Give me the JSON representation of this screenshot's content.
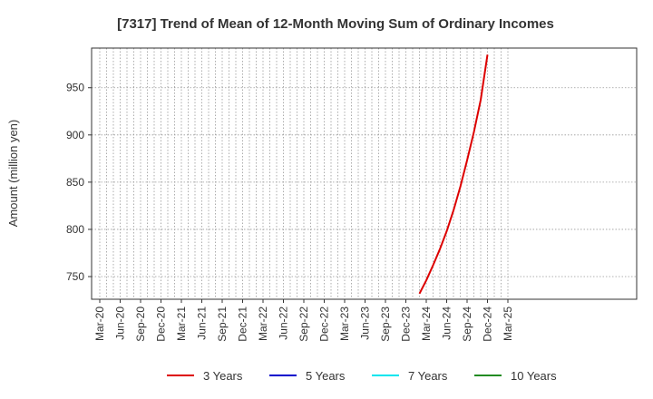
{
  "chart_data": {
    "type": "line",
    "title": "[7317]  Trend of Mean of 12-Month Moving Sum of Ordinary Incomes",
    "ylabel": "Amount (million yen)",
    "xlabel": "",
    "ylim": [
      726,
      992
    ],
    "yticks": [
      750,
      800,
      850,
      900,
      950
    ],
    "grid": true,
    "legend_position": "bottom",
    "x_tick_labels": [
      "Mar-20",
      "Jun-20",
      "Sep-20",
      "Dec-20",
      "Mar-21",
      "Jun-21",
      "Sep-21",
      "Dec-21",
      "Mar-22",
      "Jun-22",
      "Sep-22",
      "Dec-22",
      "Mar-23",
      "Jun-23",
      "Sep-23",
      "Dec-23",
      "Mar-24",
      "Jun-24",
      "Sep-24",
      "Dec-24",
      "Mar-25"
    ],
    "series": [
      {
        "name": "3 Years",
        "color": "#dd0000",
        "x": [
          "Feb-24",
          "Mar-24",
          "Apr-24",
          "May-24",
          "Jun-24",
          "Jul-24",
          "Aug-24",
          "Sep-24",
          "Oct-24",
          "Nov-24",
          "Dec-24"
        ],
        "values": [
          732,
          746,
          762,
          779,
          798,
          820,
          845,
          873,
          903,
          937,
          985
        ]
      },
      {
        "name": "5 Years",
        "color": "#0000cc",
        "x": [],
        "values": []
      },
      {
        "name": "7 Years",
        "color": "#00e5ee",
        "x": [],
        "values": []
      },
      {
        "name": "10 Years",
        "color": "#228b22",
        "x": [],
        "values": []
      }
    ]
  }
}
